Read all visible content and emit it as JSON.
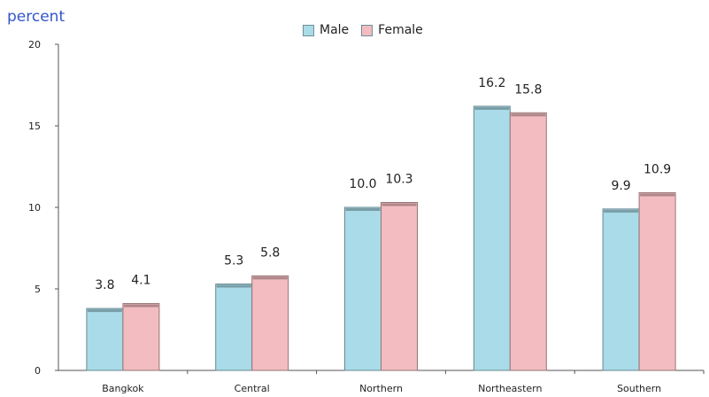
{
  "chart_data": {
    "type": "bar",
    "ylabel": "percent",
    "ylim": [
      0,
      20
    ],
    "yticks": [
      0,
      5,
      10,
      15,
      20
    ],
    "categories": [
      "Bangkok",
      "Central",
      "Northern",
      "Northeastern",
      "Southern"
    ],
    "series": [
      {
        "name": "Male",
        "values": [
          3.8,
          5.3,
          10.0,
          16.2,
          9.9
        ],
        "labels": [
          "3.8",
          "5.3",
          "10.0",
          "16.2",
          "9.9"
        ],
        "color": "#a9dbe8"
      },
      {
        "name": "Female",
        "values": [
          4.1,
          5.8,
          10.3,
          15.8,
          10.9
        ],
        "labels": [
          "4.1",
          "5.8",
          "10.3",
          "15.8",
          "10.9"
        ],
        "color": "#f2bcc0"
      }
    ],
    "legend_position": "top-center",
    "grid": false
  }
}
